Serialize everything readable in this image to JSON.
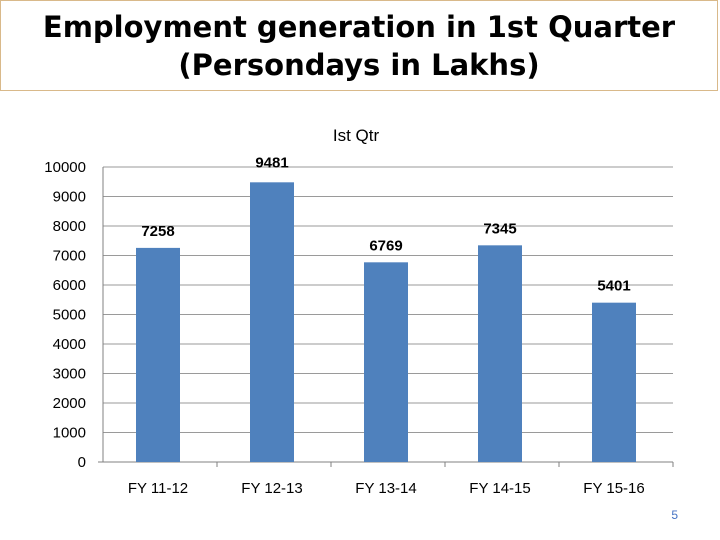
{
  "slide": {
    "title_line1": "Employment generation in 1st Quarter",
    "title_line2": "(Persondays in Lakhs)",
    "page_number": "5"
  },
  "chart_data": {
    "type": "bar",
    "title": "Ist Qtr",
    "categories": [
      "FY 11-12",
      "FY 12-13",
      "FY 13-14",
      "FY 14-15",
      "FY 15-16"
    ],
    "series": [
      {
        "values": [
          7258,
          9481,
          6769,
          7345,
          5401
        ]
      }
    ],
    "data_labels": [
      "7258",
      "9481",
      "6769",
      "7345",
      "5401"
    ],
    "y_ticks": [
      "0",
      "1000",
      "2000",
      "3000",
      "4000",
      "5000",
      "6000",
      "7000",
      "8000",
      "9000",
      "10000"
    ],
    "xlabel": "",
    "ylabel": "",
    "ylim": [
      0,
      10000
    ],
    "grid": true,
    "legend": "none",
    "colors": {
      "bar": "#4f81bd",
      "grid": "#9a9a9a",
      "axis": "#808080"
    }
  }
}
